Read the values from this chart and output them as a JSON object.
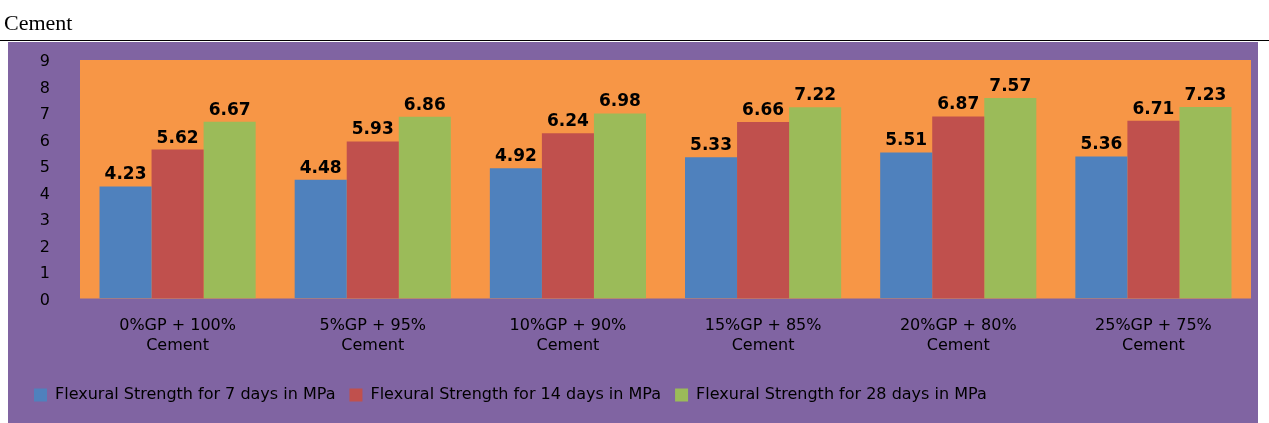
{
  "chart_data": {
    "type": "bar",
    "categories": [
      "0%GP + 100% Cement",
      "5%GP + 95% Cement",
      "10%GP + 90% Cement",
      "15%GP + 85% Cement",
      "20%GP + 80% Cement",
      "25%GP + 75% Cement"
    ],
    "series": [
      {
        "name": "Flexural Strength for 7 days in MPa",
        "color": "#4f81bd",
        "values": [
          4.23,
          4.48,
          4.92,
          5.33,
          5.51,
          5.36
        ]
      },
      {
        "name": "Flexural Strength for 14 days in MPa",
        "color": "#c0504d",
        "values": [
          5.62,
          5.93,
          6.24,
          6.66,
          6.87,
          6.71
        ]
      },
      {
        "name": "Flexural Strength for 28 days in MPa",
        "color": "#9bbb59",
        "values": [
          6.67,
          6.86,
          6.98,
          7.22,
          7.57,
          7.23
        ]
      }
    ],
    "ylim": [
      0,
      9
    ],
    "yticks": [
      0,
      1,
      2,
      3,
      4,
      5,
      6,
      7,
      8,
      9
    ],
    "grid": false,
    "legend": "bottom",
    "data_labels": true,
    "annotations": [
      "Cement"
    ]
  }
}
